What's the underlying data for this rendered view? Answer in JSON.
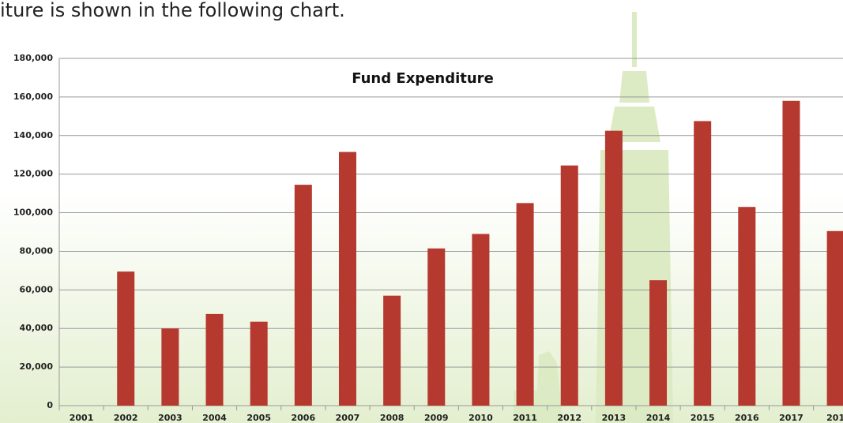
{
  "intro_text": "iture is shown in the following chart.",
  "chart_data": {
    "type": "bar",
    "title": "Fund Expenditure",
    "categories": [
      "2001",
      "2002",
      "2003",
      "2004",
      "2005",
      "2006",
      "2007",
      "2008",
      "2009",
      "2010",
      "2011",
      "2012",
      "2013",
      "2014",
      "2015",
      "2016",
      "2017",
      "201"
    ],
    "values": [
      0,
      69500,
      40000,
      47500,
      43500,
      114500,
      131500,
      57000,
      81500,
      89000,
      105000,
      124500,
      142500,
      65000,
      147500,
      103000,
      158000,
      90500
    ],
    "color": "#b5392e",
    "ylim": [
      0,
      180000
    ],
    "yticks": [
      0,
      {
        "value": 20000,
        "label": "20,000"
      },
      {
        "value": 40000,
        "label": "40,000"
      },
      {
        "value": 60000,
        "label": "60,000"
      },
      {
        "value": 80000,
        "label": "80,000"
      },
      {
        "value": 100000,
        "label": "100,000"
      },
      {
        "value": 120000,
        "label": "120,000"
      },
      {
        "value": 140000,
        "label": "140,000"
      },
      {
        "value": 160000,
        "label": "160,000"
      },
      {
        "value": 180000,
        "label": "180,000"
      }
    ],
    "grid": true
  }
}
